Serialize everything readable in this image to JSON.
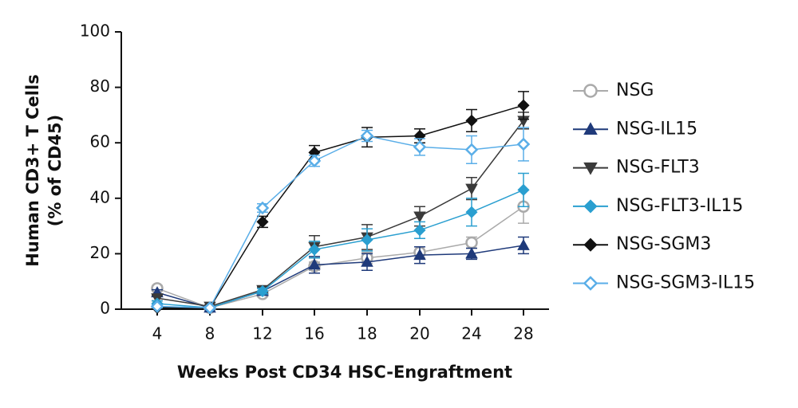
{
  "chart_data": {
    "type": "line",
    "ylabel": [
      "Human CD3+ T Cells",
      "(% of CD45)"
    ],
    "xlabel": "Weeks Post CD34 HSC-Engraftment",
    "categories": [
      "4",
      "8",
      "12",
      "16",
      "18",
      "20",
      "24",
      "28"
    ],
    "ylim": [
      0,
      100
    ],
    "yticks": [
      0,
      20,
      40,
      60,
      80,
      100
    ],
    "series": [
      {
        "name": "NSG",
        "color": "#aaaaaa",
        "marker": "circle",
        "open": true,
        "values": [
          7.5,
          0.5,
          5.5,
          15.5,
          18.5,
          20.5,
          24,
          37
        ],
        "errors": [
          1,
          0.5,
          1,
          1.5,
          2,
          2,
          2,
          6
        ]
      },
      {
        "name": "NSG-IL15",
        "color": "#1f3a7a",
        "marker": "triangle-up",
        "open": false,
        "values": [
          6,
          0.5,
          6.5,
          16,
          17,
          19.5,
          20,
          23
        ],
        "errors": [
          1,
          0.5,
          1,
          3,
          3,
          3,
          2,
          3
        ]
      },
      {
        "name": "NSG-FLT3",
        "color": "#3a3a3a",
        "marker": "triangle-down",
        "open": false,
        "values": [
          4,
          1,
          7,
          22.5,
          26,
          33.5,
          43.5,
          68
        ],
        "errors": [
          1,
          0.5,
          1,
          4,
          4.5,
          3.5,
          4,
          3
        ]
      },
      {
        "name": "NSG-FLT3-IL15",
        "color": "#2a9fd0",
        "marker": "diamond",
        "open": false,
        "values": [
          2,
          0.5,
          6.5,
          21.5,
          25,
          28.5,
          35,
          43
        ],
        "errors": [
          1,
          0.5,
          1,
          3,
          4,
          3,
          5,
          6
        ]
      },
      {
        "name": "NSG-SGM3",
        "color": "#111111",
        "marker": "diamond",
        "open": false,
        "values": [
          0.5,
          0.5,
          31.5,
          56.5,
          62,
          62.5,
          68,
          73.5
        ],
        "errors": [
          0.5,
          0.5,
          2,
          2.5,
          3.5,
          2.5,
          4,
          5
        ]
      },
      {
        "name": "NSG-SGM3-IL15",
        "color": "#5aaee8",
        "marker": "diamond",
        "open": true,
        "values": [
          1,
          0.5,
          36.5,
          53.5,
          62.5,
          58.5,
          57.5,
          59.5
        ],
        "errors": [
          0.5,
          0.5,
          1.5,
          2,
          2,
          3,
          5,
          6
        ]
      }
    ]
  }
}
